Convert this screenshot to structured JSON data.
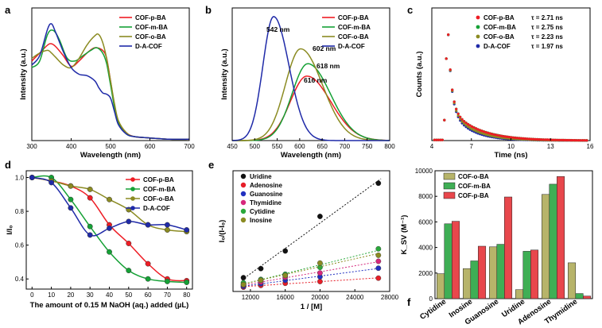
{
  "chart_data": [
    {
      "panel": "a",
      "type": "line",
      "xlabel": "Wavelength (nm)",
      "ylabel": "Intensity (a.u.)",
      "xlim": [
        300,
        700
      ],
      "xticks": [
        300,
        400,
        500,
        600,
        700
      ],
      "yticks": [],
      "legend": "top-right",
      "series": [
        {
          "name": "COF-p-BA",
          "color": "#ee1c24",
          "x": [
            300,
            320,
            340,
            350,
            360,
            380,
            400,
            420,
            440,
            460,
            480,
            490,
            500,
            510,
            520,
            540,
            560,
            600,
            650,
            700
          ],
          "y": [
            0.6,
            0.66,
            0.72,
            0.73,
            0.71,
            0.64,
            0.56,
            0.6,
            0.66,
            0.7,
            0.68,
            0.62,
            0.45,
            0.26,
            0.14,
            0.06,
            0.03,
            0.02,
            0.01,
            0.01
          ]
        },
        {
          "name": "COF-m-BA",
          "color": "#15a136",
          "x": [
            300,
            320,
            340,
            355,
            370,
            390,
            410,
            430,
            450,
            465,
            480,
            490,
            500,
            510,
            520,
            540,
            560,
            600,
            650,
            700
          ],
          "y": [
            0.55,
            0.6,
            0.8,
            0.83,
            0.76,
            0.62,
            0.6,
            0.64,
            0.68,
            0.7,
            0.66,
            0.58,
            0.42,
            0.25,
            0.13,
            0.05,
            0.03,
            0.02,
            0.01,
            0.01
          ]
        },
        {
          "name": "COF-o-BA",
          "color": "#8b8b22",
          "x": [
            300,
            320,
            340,
            350,
            360,
            380,
            400,
            420,
            440,
            460,
            470,
            480,
            490,
            500,
            510,
            520,
            540,
            560,
            600,
            650,
            700
          ],
          "y": [
            0.62,
            0.66,
            0.68,
            0.66,
            0.63,
            0.57,
            0.55,
            0.62,
            0.72,
            0.79,
            0.8,
            0.74,
            0.62,
            0.45,
            0.28,
            0.15,
            0.06,
            0.03,
            0.02,
            0.01,
            0.01
          ]
        },
        {
          "name": "D-A-COF",
          "color": "#1f2aa8",
          "x": [
            300,
            320,
            340,
            350,
            360,
            380,
            400,
            420,
            440,
            460,
            470,
            480,
            490,
            500,
            510,
            520,
            540,
            560,
            600,
            650,
            700
          ],
          "y": [
            0.57,
            0.64,
            0.84,
            0.88,
            0.82,
            0.67,
            0.55,
            0.5,
            0.49,
            0.45,
            0.4,
            0.36,
            0.35,
            0.32,
            0.22,
            0.12,
            0.05,
            0.03,
            0.02,
            0.01,
            0.01
          ]
        }
      ]
    },
    {
      "panel": "b",
      "type": "line",
      "xlabel": "Wavelength (nm)",
      "ylabel": "Intensity (a.u.)",
      "xlim": [
        450,
        800
      ],
      "xticks": [
        450,
        500,
        550,
        600,
        650,
        700,
        750,
        800
      ],
      "yticks": [],
      "legend": "top-right",
      "peak_labels": [
        "542 nm",
        "602 nm",
        "618 nm",
        "616 nm"
      ],
      "series": [
        {
          "name": "COF-p-BA",
          "color": "#ee1c24",
          "peak": 616,
          "height": 0.52,
          "width": 65,
          "start": 0.03
        },
        {
          "name": "COF-m-BA",
          "color": "#15a136",
          "peak": 618,
          "height": 0.62,
          "width": 62,
          "start": 0.04
        },
        {
          "name": "COF-o-BA",
          "color": "#8b8b22",
          "peak": 602,
          "height": 0.74,
          "width": 60,
          "start": 0.05
        },
        {
          "name": "D-A-COF",
          "color": "#1f2aa8",
          "peak": 542,
          "height": 1.0,
          "width": 42,
          "start": 0.12
        }
      ]
    },
    {
      "panel": "c",
      "type": "scatter",
      "xlabel": "Time (ns)",
      "ylabel": "Counts (a.u.)",
      "xlim": [
        4,
        16
      ],
      "xticks": [
        4,
        7,
        10,
        13,
        16
      ],
      "yticks": [],
      "legend": "top-right",
      "rise_at": 4.9,
      "peak_at": 5.2,
      "series": [
        {
          "name": "COF-p-BA",
          "tau": "τ = 2.71 ns",
          "tau_value": 2.71,
          "color": "#ee1c24"
        },
        {
          "name": "COF-m-BA",
          "tau": "τ = 2.75 ns",
          "tau_value": 2.75,
          "color": "#15a136"
        },
        {
          "name": "COF-o-BA",
          "tau": "τ = 2.23 ns",
          "tau_value": 2.23,
          "color": "#8b8b22"
        },
        {
          "name": "D-A-COF",
          "tau": "τ = 1.97 ns",
          "tau_value": 1.97,
          "color": "#1f2aa8"
        }
      ]
    },
    {
      "panel": "d",
      "type": "line",
      "xlabel": "The amount of 0.15 M NaOH (aq.) added (µL)",
      "ylabel": "I/I₀",
      "xlim": [
        -3,
        83
      ],
      "ylim": [
        0.34,
        1.04
      ],
      "xticks": [
        0,
        10,
        20,
        30,
        40,
        50,
        60,
        70,
        80
      ],
      "yticks": [
        0.4,
        0.6,
        0.8,
        1.0
      ],
      "ytick_labels": [
        "0.4",
        "0.6",
        "0.8",
        "1.0"
      ],
      "legend": "top-right",
      "x": [
        0,
        10,
        20,
        30,
        40,
        50,
        60,
        70,
        80
      ],
      "series": [
        {
          "name": "COF-p-BA",
          "color": "#ee1c24",
          "values": [
            1.0,
            0.98,
            0.95,
            0.88,
            0.72,
            0.61,
            0.49,
            0.4,
            0.39
          ]
        },
        {
          "name": "COF-m-BA",
          "color": "#15a136",
          "values": [
            1.0,
            1.0,
            0.87,
            0.71,
            0.56,
            0.45,
            0.4,
            0.385,
            0.38
          ]
        },
        {
          "name": "COF-o-BA",
          "color": "#8b8b22",
          "values": [
            1.0,
            0.98,
            0.95,
            0.93,
            0.87,
            0.81,
            0.72,
            0.69,
            0.68
          ]
        },
        {
          "name": "D-A-COF",
          "color": "#1f2aa8",
          "values": [
            1.0,
            0.97,
            0.82,
            0.66,
            0.7,
            0.74,
            0.72,
            0.72,
            0.69
          ]
        }
      ]
    },
    {
      "panel": "e",
      "type": "scatter",
      "xlabel": "1 / [M]",
      "ylabel": "I₀/(I-I₀)",
      "xlim": [
        10000,
        28000
      ],
      "ylim": [
        0,
        28
      ],
      "xticks": [
        12000,
        16000,
        20000,
        24000,
        28000
      ],
      "yticks": [],
      "legend": "top-left",
      "x": [
        11200,
        13200,
        16000,
        20000,
        26700
      ],
      "series": [
        {
          "name": "Uridine",
          "color": "#111111",
          "values": [
            3.2,
            5.3,
            9.4,
            17.4,
            25.1
          ]
        },
        {
          "name": "Adenosine",
          "color": "#e61e28",
          "values": [
            1.0,
            1.4,
            1.9,
            2.3,
            3.1
          ]
        },
        {
          "name": "Guanosine",
          "color": "#2230c0",
          "values": [
            1.2,
            1.8,
            2.6,
            3.4,
            5.4
          ]
        },
        {
          "name": "Thymidine",
          "color": "#d6287c",
          "values": [
            1.5,
            2.2,
            3.3,
            4.3,
            7.0
          ]
        },
        {
          "name": "Cytidine",
          "color": "#2aa83a",
          "values": [
            2.0,
            2.8,
            4.0,
            5.6,
            9.9
          ]
        },
        {
          "name": "Inosine",
          "color": "#8b8b22",
          "values": [
            1.6,
            2.6,
            3.7,
            6.6,
            8.4
          ]
        }
      ]
    },
    {
      "panel": "f",
      "type": "bar",
      "xlabel": "",
      "ylabel": "K_SV (M⁻¹)",
      "ylim": [
        0,
        10000
      ],
      "yticks": [
        0,
        2000,
        4000,
        6000,
        8000,
        10000
      ],
      "ytick_labels": [
        "0",
        "2000",
        "4000",
        "6000",
        "8000",
        "10000"
      ],
      "legend": "top-left",
      "categories": [
        "Cytidine",
        "Inosine",
        "Guanosine",
        "Uridine",
        "Adenosine",
        "Thymidine"
      ],
      "series": [
        {
          "name": "COF-o-BA",
          "color": "#b7b46a",
          "values": [
            1950,
            2350,
            4050,
            700,
            8150,
            2800
          ]
        },
        {
          "name": "COF-m-BA",
          "color": "#3fae55",
          "values": [
            5850,
            2950,
            4250,
            3700,
            8950,
            400
          ]
        },
        {
          "name": "COF-p-BA",
          "color": "#e8474c",
          "values": [
            6050,
            4100,
            7950,
            3800,
            9550,
            200
          ]
        }
      ]
    }
  ]
}
